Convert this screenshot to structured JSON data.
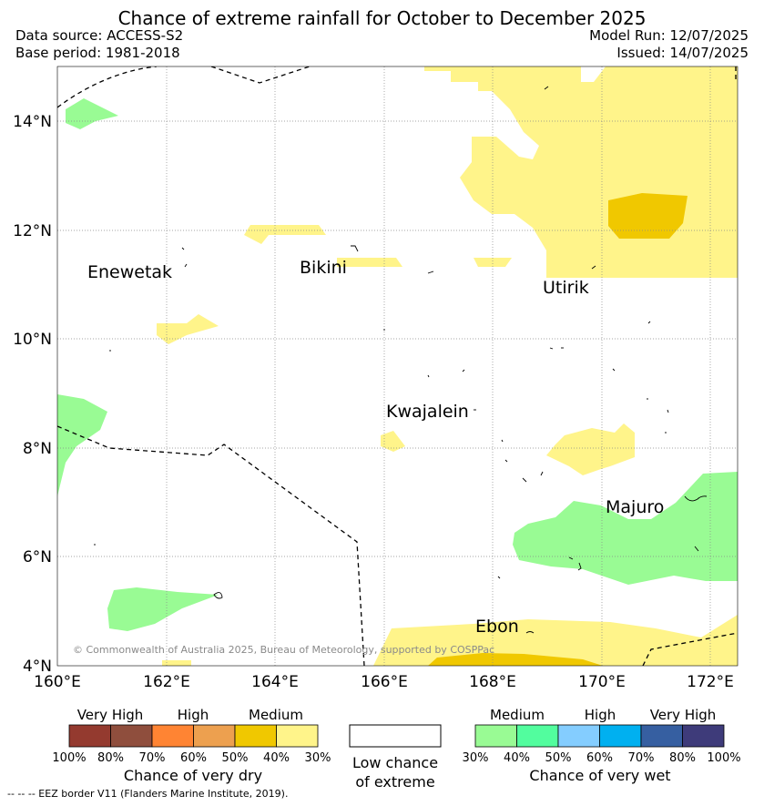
{
  "title": "Chance of extreme rainfall for October to December 2025",
  "data_source": "Data source: ACCESS-S2",
  "base_period": "Base period: 1981-2018",
  "model_run": "Model Run: 12/07/2025",
  "issued": "Issued: 14/07/2025",
  "map": {
    "lat_ticks": [
      "14°N",
      "12°N",
      "10°N",
      "8°N",
      "6°N",
      "4°N"
    ],
    "lon_ticks": [
      "160°E",
      "162°E",
      "164°E",
      "166°E",
      "168°E",
      "170°E",
      "172°E"
    ],
    "places": {
      "enewetak": "Enewetak",
      "bikini": "Bikini",
      "utirik": "Utirik",
      "kwajalein": "Kwajalein",
      "majuro": "Majuro",
      "ebon": "Ebon"
    },
    "copyright": "© Commonwealth of Australia 2025, Bureau of Meteorology, supported by COSPPac"
  },
  "legend_dry": {
    "headers": [
      "Very High",
      "High",
      "Medium"
    ],
    "colors": [
      "#943a2f",
      "#8f4e3d",
      "#ff8433",
      "#eda04f",
      "#f0c800",
      "#fff48a"
    ],
    "ticks": [
      "100%",
      "80%",
      "70%",
      "60%",
      "50%",
      "40%",
      "30%"
    ],
    "caption": "Chance of very dry"
  },
  "legend_low": {
    "color": "#ffffff",
    "caption_line1": "Low chance",
    "caption_line2": "of extreme"
  },
  "legend_wet": {
    "headers": [
      "Medium",
      "High",
      "Very High"
    ],
    "colors": [
      "#99fb94",
      "#52fd9e",
      "#84cdff",
      "#00b0f0",
      "#365fa1",
      "#3e3b7a"
    ],
    "ticks": [
      "30%",
      "40%",
      "50%",
      "60%",
      "70%",
      "80%",
      "100%"
    ],
    "caption": "Chance of very wet"
  },
  "footnote": "--  --  -- EEZ border V11 (Flanders Marine Institute, 2019)."
}
